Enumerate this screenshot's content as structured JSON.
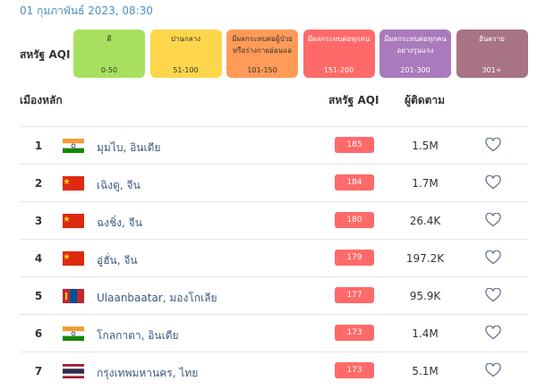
{
  "header": {
    "date": "01 กุมภาพันธ์ 2023, 08:30",
    "legend_label": "สหรัฐ AQI"
  },
  "legend": [
    {
      "label": "ดี",
      "range": "0-50"
    },
    {
      "label": "ปานกลาง",
      "range": "51-100"
    },
    {
      "label": "มีผลกระทบต่อผู้ป่วยหรือร่างกายอ่อนแอ",
      "range": "101-150"
    },
    {
      "label": "มีผลกระทบต่อทุกคน",
      "range": "151-200"
    },
    {
      "label": "มีผลกระทบต่อทุกคนอย่างรุนแรง",
      "range": "201-300"
    },
    {
      "label": "อันตราย",
      "range": "301+"
    }
  ],
  "table": {
    "columns": [
      "เมืองหลัก",
      "สหรัฐ AQI",
      "ผู้ติดตาม"
    ],
    "rows": [
      {
        "rank": 1,
        "city": "มุมไบ, อินเดีย",
        "aqi": 185,
        "followers": "1.5M"
      },
      {
        "rank": 2,
        "city": "เฉิงดู, จีน",
        "aqi": 184,
        "followers": "1.7M"
      },
      {
        "rank": 3,
        "city": "ฉงชิ่ง, จีน",
        "aqi": 180,
        "followers": "26.4K"
      },
      {
        "rank": 4,
        "city": "อู่ฮั่น, จีน",
        "aqi": 179,
        "followers": "197.2K"
      },
      {
        "rank": 5,
        "city": "Ulaanbaatar, มองโกเลีย",
        "aqi": 177,
        "followers": "95.9K"
      },
      {
        "rank": 6,
        "city": "โกลกาตา, อินเดีย",
        "aqi": 173,
        "followers": "1.4M"
      },
      {
        "rank": 7,
        "city": "กรุงเทพมหานคร, ไทย",
        "aqi": 173,
        "followers": "5.1M"
      }
    ]
  }
}
